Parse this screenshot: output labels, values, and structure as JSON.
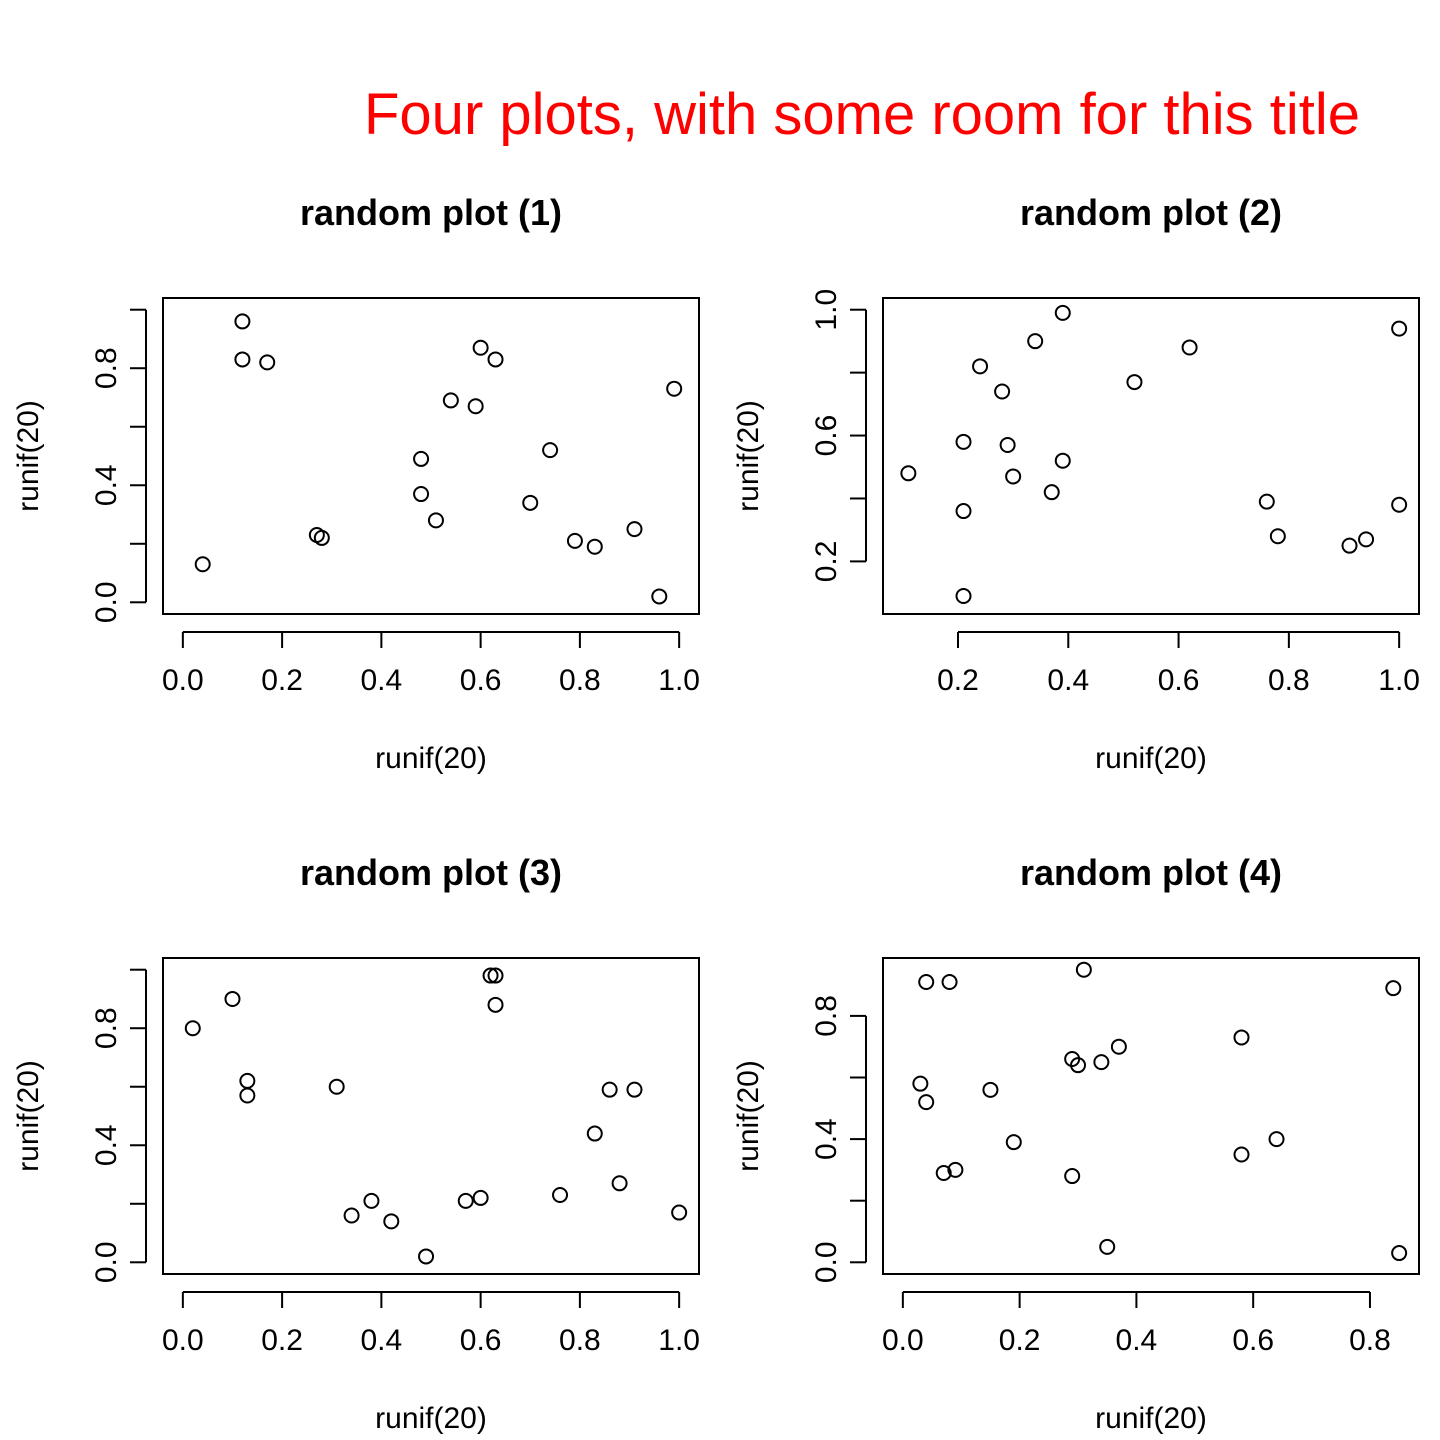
{
  "figure": {
    "title": "Four plots, with some room for this title",
    "title_color": "#ff0000"
  },
  "chart_data": [
    {
      "type": "scatter",
      "title": "random plot (1)",
      "xlabel": "runif(20)",
      "ylabel": "runif(20)",
      "xlim": [
        0.0,
        1.0
      ],
      "ylim": [
        0.0,
        1.0
      ],
      "xticks": [
        "0.0",
        "0.2",
        "0.4",
        "0.6",
        "0.8",
        "1.0"
      ],
      "yticks": [
        "0.0",
        "0.4",
        "0.8"
      ],
      "points": [
        [
          0.04,
          0.13
        ],
        [
          0.12,
          0.96
        ],
        [
          0.12,
          0.83
        ],
        [
          0.17,
          0.82
        ],
        [
          0.27,
          0.23
        ],
        [
          0.28,
          0.22
        ],
        [
          0.48,
          0.49
        ],
        [
          0.48,
          0.37
        ],
        [
          0.51,
          0.28
        ],
        [
          0.54,
          0.69
        ],
        [
          0.59,
          0.67
        ],
        [
          0.6,
          0.87
        ],
        [
          0.63,
          0.83
        ],
        [
          0.7,
          0.34
        ],
        [
          0.74,
          0.52
        ],
        [
          0.79,
          0.21
        ],
        [
          0.83,
          0.19
        ],
        [
          0.91,
          0.25
        ],
        [
          0.96,
          0.02
        ],
        [
          0.99,
          0.73
        ]
      ]
    },
    {
      "type": "scatter",
      "title": "random plot (2)",
      "xlabel": "runif(20)",
      "ylabel": "runif(20)",
      "xlim": [
        0.1,
        1.0
      ],
      "ylim": [
        0.07,
        1.0
      ],
      "xticks": [
        "0.2",
        "0.4",
        "0.6",
        "0.8",
        "1.0"
      ],
      "yticks": [
        "0.2",
        "0.6",
        "1.0"
      ],
      "points": [
        [
          0.11,
          0.48
        ],
        [
          0.21,
          0.58
        ],
        [
          0.21,
          0.36
        ],
        [
          0.21,
          0.09
        ],
        [
          0.24,
          0.82
        ],
        [
          0.28,
          0.74
        ],
        [
          0.29,
          0.57
        ],
        [
          0.3,
          0.47
        ],
        [
          0.34,
          0.9
        ],
        [
          0.37,
          0.42
        ],
        [
          0.39,
          0.99
        ],
        [
          0.39,
          0.52
        ],
        [
          0.52,
          0.77
        ],
        [
          0.62,
          0.88
        ],
        [
          0.76,
          0.39
        ],
        [
          0.78,
          0.28
        ],
        [
          0.91,
          0.25
        ],
        [
          0.94,
          0.27
        ],
        [
          1.0,
          0.94
        ],
        [
          1.0,
          0.38
        ]
      ]
    },
    {
      "type": "scatter",
      "title": "random plot (3)",
      "xlabel": "runif(20)",
      "ylabel": "runif(20)",
      "xlim": [
        0.0,
        1.0
      ],
      "ylim": [
        0.0,
        1.0
      ],
      "xticks": [
        "0.0",
        "0.2",
        "0.4",
        "0.6",
        "0.8",
        "1.0"
      ],
      "yticks": [
        "0.0",
        "0.4",
        "0.8"
      ],
      "points": [
        [
          0.02,
          0.8
        ],
        [
          0.1,
          0.9
        ],
        [
          0.13,
          0.62
        ],
        [
          0.13,
          0.57
        ],
        [
          0.31,
          0.6
        ],
        [
          0.34,
          0.16
        ],
        [
          0.38,
          0.21
        ],
        [
          0.42,
          0.14
        ],
        [
          0.49,
          0.02
        ],
        [
          0.57,
          0.21
        ],
        [
          0.6,
          0.22
        ],
        [
          0.62,
          0.98
        ],
        [
          0.63,
          0.98
        ],
        [
          0.63,
          0.88
        ],
        [
          0.76,
          0.23
        ],
        [
          0.83,
          0.44
        ],
        [
          0.86,
          0.59
        ],
        [
          0.88,
          0.27
        ],
        [
          0.91,
          0.59
        ],
        [
          1.0,
          0.17
        ]
      ]
    },
    {
      "type": "scatter",
      "title": "random plot (4)",
      "xlabel": "runif(20)",
      "ylabel": "runif(20)",
      "xlim": [
        0.0,
        0.85
      ],
      "ylim": [
        0.0,
        0.95
      ],
      "xticks": [
        "0.0",
        "0.2",
        "0.4",
        "0.6",
        "0.8"
      ],
      "yticks": [
        "0.0",
        "0.4",
        "0.8"
      ],
      "points": [
        [
          0.03,
          0.58
        ],
        [
          0.04,
          0.91
        ],
        [
          0.04,
          0.52
        ],
        [
          0.07,
          0.29
        ],
        [
          0.08,
          0.91
        ],
        [
          0.09,
          0.3
        ],
        [
          0.15,
          0.56
        ],
        [
          0.19,
          0.39
        ],
        [
          0.29,
          0.66
        ],
        [
          0.29,
          0.28
        ],
        [
          0.3,
          0.64
        ],
        [
          0.31,
          0.95
        ],
        [
          0.34,
          0.65
        ],
        [
          0.35,
          0.05
        ],
        [
          0.37,
          0.7
        ],
        [
          0.58,
          0.73
        ],
        [
          0.58,
          0.35
        ],
        [
          0.64,
          0.4
        ],
        [
          0.84,
          0.89
        ],
        [
          0.85,
          0.03
        ]
      ]
    }
  ]
}
